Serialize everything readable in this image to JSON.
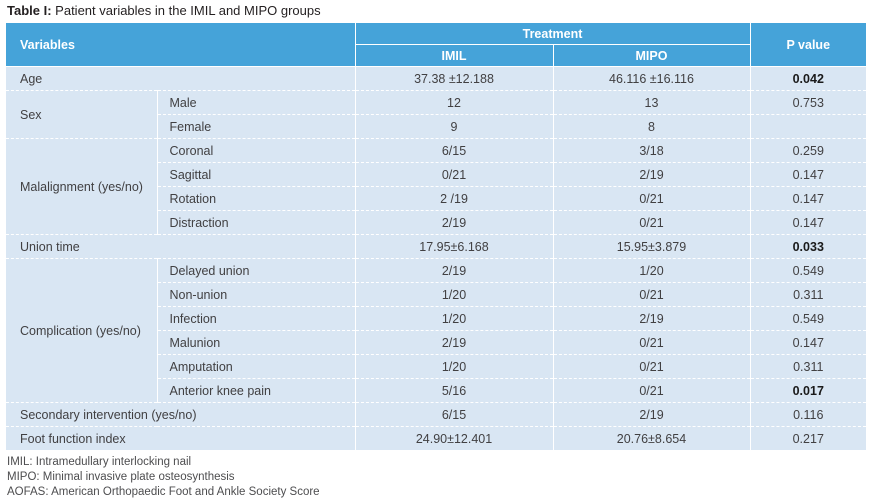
{
  "title": {
    "label": "Table I:",
    "text": "Patient variables in the IMIL and MIPO groups"
  },
  "colors": {
    "header_blue": "#45a3d9",
    "row_background": "#d9e6f3",
    "separator": "#ffffff",
    "body_text": "#414042",
    "bold_p_text": "#1a1a1a",
    "footnote_text": "#4d4d4f",
    "title_text": "#231f20"
  },
  "header": {
    "variables": "Variables",
    "treatment": "Treatment",
    "imil": "IMIL",
    "mipo": "MIPO",
    "p_value": "P value"
  },
  "rows": [
    {
      "variable": "Age",
      "imil": "37.38 ±12.188",
      "mipo": "46.116 ±16.116",
      "p": "0.042",
      "p_bold": true
    },
    {
      "variable": "Sex",
      "subrows": [
        {
          "label": "Male",
          "imil": "12",
          "mipo": "13",
          "p": "0.753"
        },
        {
          "label": "Female",
          "imil": "9",
          "mipo": "8",
          "p": ""
        }
      ]
    },
    {
      "variable": "Malalignment (yes/no)",
      "subrows": [
        {
          "label": "Coronal",
          "imil": "6/15",
          "mipo": "3/18",
          "p": "0.259"
        },
        {
          "label": "Sagittal",
          "imil": "0/21",
          "mipo": "2/19",
          "p": "0.147"
        },
        {
          "label": "Rotation",
          "imil": "2 /19",
          "mipo": "0/21",
          "p": "0.147"
        },
        {
          "label": "Distraction",
          "imil": "2/19",
          "mipo": "0/21",
          "p": "0.147"
        }
      ]
    },
    {
      "variable": "Union time",
      "imil": "17.95±6.168",
      "mipo": "15.95±3.879",
      "p": "0.033",
      "p_bold": true
    },
    {
      "variable": "Complication (yes/no)",
      "subrows": [
        {
          "label": "Delayed union",
          "imil": "2/19",
          "mipo": "1/20",
          "p": "0.549"
        },
        {
          "label": "Non-union",
          "imil": "1/20",
          "mipo": "0/21",
          "p": "0.311"
        },
        {
          "label": "Infection",
          "imil": "1/20",
          "mipo": "2/19",
          "p": "0.549"
        },
        {
          "label": "Malunion",
          "imil": "2/19",
          "mipo": "0/21",
          "p": "0.147"
        },
        {
          "label": "Amputation",
          "imil": "1/20",
          "mipo": "0/21",
          "p": "0.311"
        },
        {
          "label": "Anterior knee pain",
          "imil": "5/16",
          "mipo": "0/21",
          "p": "0.017",
          "p_bold": true
        }
      ]
    },
    {
      "variable": "Secondary intervention (yes/no)",
      "imil": "6/15",
      "mipo": "2/19",
      "p": "0.116"
    },
    {
      "variable": "Foot function index",
      "imil": "24.90±12.401",
      "mipo": "20.76±8.654",
      "p": "0.217"
    }
  ],
  "footnotes": [
    "IMIL: Intramedullary interlocking nail",
    "MIPO: Minimal invasive plate osteosynthesis",
    "AOFAS: American Orthopaedic Foot and Ankle Society Score"
  ]
}
